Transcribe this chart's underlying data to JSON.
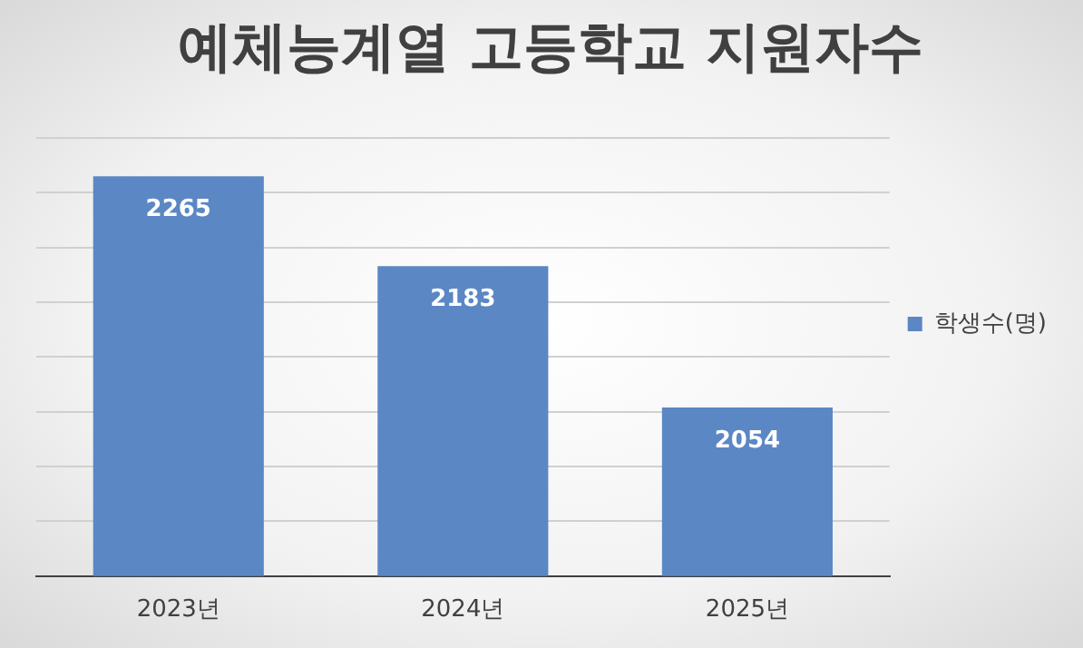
{
  "chart_data": {
    "type": "bar",
    "title": "예체능계열 고등학교 지원자수",
    "categories": [
      "2023년",
      "2024년",
      "2025년"
    ],
    "series": [
      {
        "name": "학생수(명)",
        "color": "#5b87c5",
        "values": [
          2265,
          2183,
          2054
        ]
      }
    ],
    "ylim": [
      1900,
      2300
    ],
    "yticks": [
      {
        "value": 1900,
        "label": null
      },
      {
        "value": 1950,
        "label": null
      },
      {
        "value": 2000,
        "label": null
      },
      {
        "value": 2050,
        "label": null
      },
      {
        "value": 2100,
        "label": null
      },
      {
        "value": 2150,
        "label": null
      },
      {
        "value": 2200,
        "label": null
      },
      {
        "value": 2250,
        "label": null
      },
      {
        "value": 2300,
        "label": null
      }
    ],
    "tick_labels": "x",
    "grid": "y",
    "legend": "right",
    "data_labels": true
  }
}
